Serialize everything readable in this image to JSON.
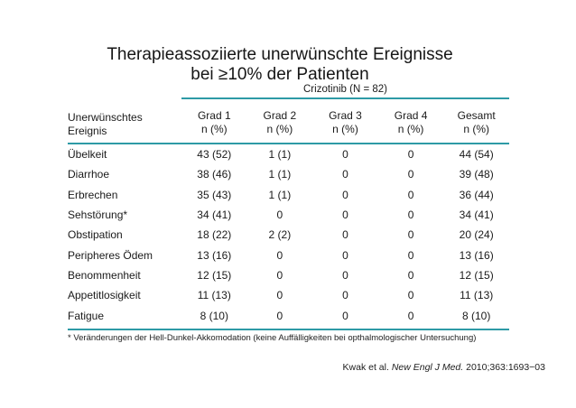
{
  "slide": {
    "background": "#ffffff",
    "accent_color": "#2E9AA6",
    "title_line1": "Therapieassoziierte unerwünschte Ereignisse",
    "title_line2": "bei ≥10% der Patienten",
    "footnote": "* Veränderungen der Hell-Dunkel-Akkomodation (keine Auffälligkeiten bei opthalmologischer Untersuchung)",
    "citation": {
      "prefix": "Kwak et al. ",
      "journal_italic": "New Engl J Med.",
      "suffix": " 2010;363:1693−03"
    }
  },
  "table": {
    "group_header": "Crizotinib (N = 82)",
    "row_header": {
      "line1": "Unerwünschtes",
      "line2": "Ereignis"
    },
    "columns": [
      {
        "line1": "Grad 1",
        "line2": "n (%)"
      },
      {
        "line1": "Grad 2",
        "line2": "n (%)"
      },
      {
        "line1": "Grad 3",
        "line2": "n (%)"
      },
      {
        "line1": "Grad 4",
        "line2": "n (%)"
      },
      {
        "line1": "Gesamt",
        "line2": "n (%)"
      }
    ],
    "rows": [
      {
        "event": "Übelkeit",
        "grad1": "43 (52)",
        "grad2": "1 (1)",
        "grad3": "0",
        "grad4": "0",
        "gesamt": "44 (54)"
      },
      {
        "event": "Diarrhoe",
        "grad1": "38 (46)",
        "grad2": "1 (1)",
        "grad3": "0",
        "grad4": "0",
        "gesamt": "39 (48)"
      },
      {
        "event": "Erbrechen",
        "grad1": "35 (43)",
        "grad2": "1 (1)",
        "grad3": "0",
        "grad4": "0",
        "gesamt": "36 (44)"
      },
      {
        "event": "Sehstörung*",
        "grad1": "34 (41)",
        "grad2": "0",
        "grad3": "0",
        "grad4": "0",
        "gesamt": "34 (41)"
      },
      {
        "event": "Obstipation",
        "grad1": "18 (22)",
        "grad2": "2 (2)",
        "grad3": "0",
        "grad4": "0",
        "gesamt": "20 (24)"
      },
      {
        "event": "Peripheres Ödem",
        "grad1": "13 (16)",
        "grad2": "0",
        "grad3": "0",
        "grad4": "0",
        "gesamt": "13 (16)"
      },
      {
        "event": "Benommenheit",
        "grad1": "12 (15)",
        "grad2": "0",
        "grad3": "0",
        "grad4": "0",
        "gesamt": "12 (15)"
      },
      {
        "event": "Appetitlosigkeit",
        "grad1": "11 (13)",
        "grad2": "0",
        "grad3": "0",
        "grad4": "0",
        "gesamt": "11 (13)"
      },
      {
        "event": "Fatigue",
        "grad1": "8 (10)",
        "grad2": "0",
        "grad3": "0",
        "grad4": "0",
        "gesamt": "8 (10)"
      }
    ]
  }
}
